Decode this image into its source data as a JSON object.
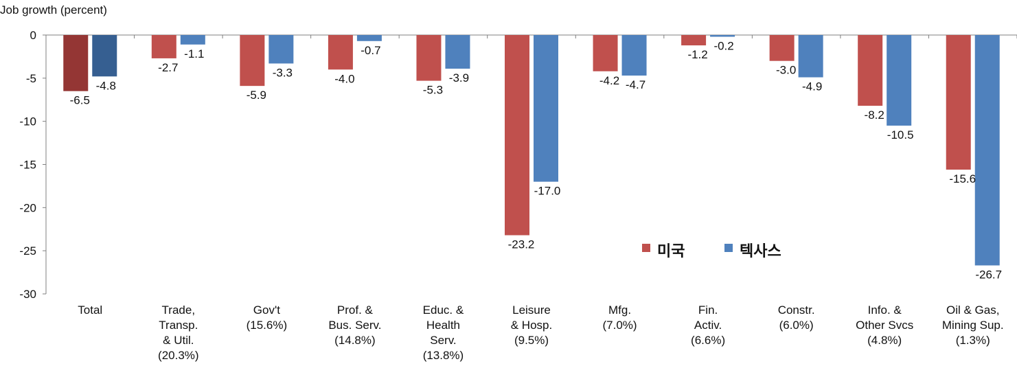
{
  "chart_data": {
    "type": "bar",
    "ylabel": "Job growth (percent)",
    "ylim": [
      -30,
      0
    ],
    "yticks": [
      0,
      -5,
      -10,
      -15,
      -20,
      -25,
      -30
    ],
    "grid": false,
    "legend_position": "bottom-right",
    "categories": [
      [
        "Total"
      ],
      [
        "Trade,",
        "Transp.",
        "& Util.",
        "(20.3%)"
      ],
      [
        "Gov't",
        "(15.6%)"
      ],
      [
        "Prof. &",
        "Bus. Serv.",
        "(14.8%)"
      ],
      [
        "Educ. &",
        "Health",
        "Serv.",
        "(13.8%)"
      ],
      [
        "Leisure",
        "& Hosp.",
        "(9.5%)"
      ],
      [
        "Mfg.",
        "(7.0%)"
      ],
      [
        "Fin.",
        "Activ.",
        "(6.6%)"
      ],
      [
        "Constr.",
        "(6.0%)"
      ],
      [
        "Info. &",
        "Other Svcs",
        "(4.8%)"
      ],
      [
        "Oil & Gas,",
        "Mining Sup.",
        "(1.3%)"
      ]
    ],
    "series": [
      {
        "name": "미국",
        "color": "#c0504d",
        "highlight_color": "#943634",
        "values": [
          -6.5,
          -2.7,
          -5.9,
          -4.0,
          -5.3,
          -23.2,
          -4.2,
          -1.2,
          -3.0,
          -8.2,
          -15.6
        ],
        "labels": [
          "-6.5",
          "-2.7",
          "-5.9",
          "-4.0",
          "-5.3",
          "-23.2",
          "-4.2",
          "-1.2",
          "-3.0",
          "-8.2",
          "-15.6"
        ]
      },
      {
        "name": "텍사스",
        "color": "#4f81bd",
        "highlight_color": "#365f91",
        "values": [
          -4.8,
          -1.1,
          -3.3,
          -0.7,
          -3.9,
          -17.0,
          -4.7,
          -0.2,
          -4.9,
          -10.5,
          -26.7
        ],
        "labels": [
          "-4.8",
          "-1.1",
          "-3.3",
          "-0.7",
          "-3.9",
          "-17.0",
          "-4.7",
          "-0.2",
          "-4.9",
          "-10.5",
          "-26.7"
        ]
      }
    ],
    "highlight_first_category": true
  }
}
